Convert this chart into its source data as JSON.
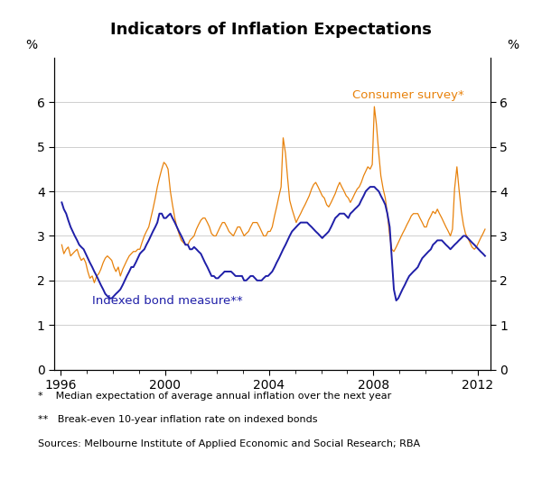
{
  "title": "Indicators of Inflation Expectations",
  "ylabel_left": "%",
  "ylabel_right": "%",
  "xlim": [
    1995.75,
    2012.5
  ],
  "ylim": [
    0,
    7
  ],
  "yticks": [
    0,
    1,
    2,
    3,
    4,
    5,
    6
  ],
  "xticks": [
    1996,
    2000,
    2004,
    2008,
    2012
  ],
  "xtick_labels": [
    "1996",
    "2000",
    "2004",
    "2008",
    "2012"
  ],
  "consumer_color": "#E8820C",
  "bond_color": "#1F1FA8",
  "consumer_label": "Consumer survey*",
  "bond_label": "Indexed bond measure**",
  "footnote1": "*    Median expectation of average annual inflation over the next year",
  "footnote2": "**   Break-even 10-year inflation rate on indexed bonds",
  "footnote3": "Sources: Melbourne Institute of Applied Economic and Social Research; RBA",
  "background_color": "#ffffff",
  "consumer_x": [
    1996.04,
    1996.12,
    1996.21,
    1996.29,
    1996.38,
    1996.46,
    1996.54,
    1996.63,
    1996.71,
    1996.79,
    1996.88,
    1996.96,
    1997.04,
    1997.12,
    1997.21,
    1997.29,
    1997.38,
    1997.46,
    1997.54,
    1997.63,
    1997.71,
    1997.79,
    1997.88,
    1997.96,
    1998.04,
    1998.12,
    1998.21,
    1998.29,
    1998.38,
    1998.46,
    1998.54,
    1998.63,
    1998.71,
    1998.79,
    1998.88,
    1998.96,
    1999.04,
    1999.12,
    1999.21,
    1999.29,
    1999.38,
    1999.46,
    1999.54,
    1999.63,
    1999.71,
    1999.79,
    1999.88,
    1999.96,
    2000.04,
    2000.12,
    2000.21,
    2000.29,
    2000.38,
    2000.46,
    2000.54,
    2000.63,
    2000.71,
    2000.79,
    2000.88,
    2000.96,
    2001.04,
    2001.12,
    2001.21,
    2001.29,
    2001.38,
    2001.46,
    2001.54,
    2001.63,
    2001.71,
    2001.79,
    2001.88,
    2001.96,
    2002.04,
    2002.12,
    2002.21,
    2002.29,
    2002.38,
    2002.46,
    2002.54,
    2002.63,
    2002.71,
    2002.79,
    2002.88,
    2002.96,
    2003.04,
    2003.12,
    2003.21,
    2003.29,
    2003.38,
    2003.46,
    2003.54,
    2003.63,
    2003.71,
    2003.79,
    2003.88,
    2003.96,
    2004.04,
    2004.12,
    2004.21,
    2004.29,
    2004.38,
    2004.46,
    2004.54,
    2004.63,
    2004.71,
    2004.79,
    2004.88,
    2004.96,
    2005.04,
    2005.12,
    2005.21,
    2005.29,
    2005.38,
    2005.46,
    2005.54,
    2005.63,
    2005.71,
    2005.79,
    2005.88,
    2005.96,
    2006.04,
    2006.12,
    2006.21,
    2006.29,
    2006.38,
    2006.46,
    2006.54,
    2006.63,
    2006.71,
    2006.79,
    2006.88,
    2006.96,
    2007.04,
    2007.12,
    2007.21,
    2007.29,
    2007.38,
    2007.46,
    2007.54,
    2007.63,
    2007.71,
    2007.79,
    2007.88,
    2007.96,
    2008.04,
    2008.12,
    2008.21,
    2008.29,
    2008.38,
    2008.46,
    2008.54,
    2008.63,
    2008.71,
    2008.79,
    2008.88,
    2008.96,
    2009.04,
    2009.12,
    2009.21,
    2009.29,
    2009.38,
    2009.46,
    2009.54,
    2009.63,
    2009.71,
    2009.79,
    2009.88,
    2009.96,
    2010.04,
    2010.12,
    2010.21,
    2010.29,
    2010.38,
    2010.46,
    2010.54,
    2010.63,
    2010.71,
    2010.79,
    2010.88,
    2010.96,
    2011.04,
    2011.12,
    2011.21,
    2011.29,
    2011.38,
    2011.46,
    2011.54,
    2011.63,
    2011.71,
    2011.79,
    2011.88,
    2011.96,
    2012.04,
    2012.12,
    2012.21,
    2012.29
  ],
  "consumer_y": [
    2.8,
    2.6,
    2.7,
    2.75,
    2.55,
    2.6,
    2.65,
    2.7,
    2.55,
    2.45,
    2.5,
    2.4,
    2.2,
    2.05,
    2.1,
    1.95,
    2.1,
    2.15,
    2.25,
    2.4,
    2.5,
    2.55,
    2.5,
    2.45,
    2.3,
    2.2,
    2.3,
    2.1,
    2.25,
    2.35,
    2.45,
    2.55,
    2.6,
    2.65,
    2.65,
    2.7,
    2.7,
    2.85,
    3.0,
    3.1,
    3.2,
    3.4,
    3.6,
    3.85,
    4.1,
    4.3,
    4.5,
    4.65,
    4.6,
    4.5,
    4.0,
    3.7,
    3.4,
    3.2,
    3.05,
    2.9,
    2.85,
    2.8,
    2.8,
    2.9,
    2.95,
    3.0,
    3.15,
    3.25,
    3.35,
    3.4,
    3.4,
    3.3,
    3.2,
    3.05,
    3.0,
    3.0,
    3.1,
    3.2,
    3.3,
    3.3,
    3.2,
    3.1,
    3.05,
    3.0,
    3.1,
    3.2,
    3.2,
    3.1,
    3.0,
    3.05,
    3.1,
    3.2,
    3.3,
    3.3,
    3.3,
    3.2,
    3.1,
    3.0,
    3.0,
    3.1,
    3.1,
    3.2,
    3.45,
    3.65,
    3.9,
    4.1,
    5.2,
    4.85,
    4.3,
    3.8,
    3.6,
    3.45,
    3.3,
    3.4,
    3.5,
    3.6,
    3.7,
    3.8,
    3.9,
    4.05,
    4.15,
    4.2,
    4.1,
    4.0,
    3.9,
    3.85,
    3.7,
    3.65,
    3.75,
    3.85,
    3.95,
    4.1,
    4.2,
    4.1,
    4.0,
    3.9,
    3.85,
    3.75,
    3.85,
    3.95,
    4.05,
    4.1,
    4.2,
    4.35,
    4.45,
    4.55,
    4.5,
    4.6,
    5.9,
    5.5,
    4.85,
    4.35,
    4.05,
    3.85,
    3.5,
    3.0,
    2.7,
    2.65,
    2.75,
    2.85,
    2.95,
    3.05,
    3.15,
    3.25,
    3.35,
    3.45,
    3.5,
    3.5,
    3.5,
    3.4,
    3.3,
    3.2,
    3.2,
    3.35,
    3.45,
    3.55,
    3.5,
    3.6,
    3.5,
    3.4,
    3.3,
    3.2,
    3.1,
    3.0,
    3.15,
    4.05,
    4.55,
    4.05,
    3.55,
    3.25,
    3.05,
    2.95,
    2.85,
    2.75,
    2.7,
    2.75,
    2.85,
    2.95,
    3.05,
    3.15
  ],
  "bond_x": [
    1996.04,
    1996.12,
    1996.21,
    1996.29,
    1996.38,
    1996.46,
    1996.54,
    1996.63,
    1996.71,
    1996.79,
    1996.88,
    1996.96,
    1997.04,
    1997.12,
    1997.21,
    1997.29,
    1997.38,
    1997.46,
    1997.54,
    1997.63,
    1997.71,
    1997.79,
    1997.88,
    1997.96,
    1998.04,
    1998.12,
    1998.21,
    1998.29,
    1998.38,
    1998.46,
    1998.54,
    1998.63,
    1998.71,
    1998.79,
    1998.88,
    1998.96,
    1999.04,
    1999.12,
    1999.21,
    1999.29,
    1999.38,
    1999.46,
    1999.54,
    1999.63,
    1999.71,
    1999.79,
    1999.88,
    1999.96,
    2000.04,
    2000.12,
    2000.21,
    2000.29,
    2000.38,
    2000.46,
    2000.54,
    2000.63,
    2000.71,
    2000.79,
    2000.88,
    2000.96,
    2001.04,
    2001.12,
    2001.21,
    2001.29,
    2001.38,
    2001.46,
    2001.54,
    2001.63,
    2001.71,
    2001.79,
    2001.88,
    2001.96,
    2002.04,
    2002.12,
    2002.21,
    2002.29,
    2002.38,
    2002.46,
    2002.54,
    2002.63,
    2002.71,
    2002.79,
    2002.88,
    2002.96,
    2003.04,
    2003.12,
    2003.21,
    2003.29,
    2003.38,
    2003.46,
    2003.54,
    2003.63,
    2003.71,
    2003.79,
    2003.88,
    2003.96,
    2004.04,
    2004.12,
    2004.21,
    2004.29,
    2004.38,
    2004.46,
    2004.54,
    2004.63,
    2004.71,
    2004.79,
    2004.88,
    2004.96,
    2005.04,
    2005.12,
    2005.21,
    2005.29,
    2005.38,
    2005.46,
    2005.54,
    2005.63,
    2005.71,
    2005.79,
    2005.88,
    2005.96,
    2006.04,
    2006.12,
    2006.21,
    2006.29,
    2006.38,
    2006.46,
    2006.54,
    2006.63,
    2006.71,
    2006.79,
    2006.88,
    2006.96,
    2007.04,
    2007.12,
    2007.21,
    2007.29,
    2007.38,
    2007.46,
    2007.54,
    2007.63,
    2007.71,
    2007.79,
    2007.88,
    2007.96,
    2008.04,
    2008.12,
    2008.21,
    2008.29,
    2008.38,
    2008.46,
    2008.54,
    2008.63,
    2008.71,
    2008.79,
    2008.88,
    2008.96,
    2009.04,
    2009.12,
    2009.21,
    2009.29,
    2009.38,
    2009.46,
    2009.54,
    2009.63,
    2009.71,
    2009.79,
    2009.88,
    2009.96,
    2010.04,
    2010.12,
    2010.21,
    2010.29,
    2010.38,
    2010.46,
    2010.54,
    2010.63,
    2010.71,
    2010.79,
    2010.88,
    2010.96,
    2011.04,
    2011.12,
    2011.21,
    2011.29,
    2011.38,
    2011.46,
    2011.54,
    2011.63,
    2011.71,
    2011.79,
    2011.88,
    2011.96,
    2012.04,
    2012.12,
    2012.21,
    2012.29
  ],
  "bond_y": [
    3.75,
    3.6,
    3.5,
    3.35,
    3.2,
    3.1,
    3.0,
    2.9,
    2.8,
    2.75,
    2.7,
    2.6,
    2.5,
    2.4,
    2.3,
    2.2,
    2.1,
    2.0,
    1.9,
    1.8,
    1.7,
    1.65,
    1.6,
    1.6,
    1.65,
    1.7,
    1.75,
    1.8,
    1.9,
    2.0,
    2.1,
    2.2,
    2.3,
    2.3,
    2.4,
    2.5,
    2.6,
    2.65,
    2.7,
    2.8,
    2.9,
    3.0,
    3.1,
    3.2,
    3.3,
    3.5,
    3.5,
    3.4,
    3.4,
    3.45,
    3.5,
    3.4,
    3.3,
    3.2,
    3.1,
    3.0,
    2.9,
    2.8,
    2.8,
    2.7,
    2.7,
    2.75,
    2.7,
    2.65,
    2.6,
    2.5,
    2.4,
    2.3,
    2.2,
    2.1,
    2.1,
    2.05,
    2.05,
    2.1,
    2.15,
    2.2,
    2.2,
    2.2,
    2.2,
    2.15,
    2.1,
    2.1,
    2.1,
    2.1,
    2.0,
    2.0,
    2.05,
    2.1,
    2.1,
    2.05,
    2.0,
    2.0,
    2.0,
    2.05,
    2.1,
    2.1,
    2.15,
    2.2,
    2.3,
    2.4,
    2.5,
    2.6,
    2.7,
    2.8,
    2.9,
    3.0,
    3.1,
    3.15,
    3.2,
    3.25,
    3.3,
    3.3,
    3.3,
    3.3,
    3.25,
    3.2,
    3.15,
    3.1,
    3.05,
    3.0,
    2.95,
    3.0,
    3.05,
    3.1,
    3.2,
    3.3,
    3.4,
    3.45,
    3.5,
    3.5,
    3.5,
    3.45,
    3.4,
    3.5,
    3.55,
    3.6,
    3.65,
    3.7,
    3.8,
    3.9,
    4.0,
    4.05,
    4.1,
    4.1,
    4.1,
    4.05,
    4.0,
    3.9,
    3.8,
    3.7,
    3.5,
    3.2,
    2.5,
    1.8,
    1.55,
    1.6,
    1.7,
    1.8,
    1.9,
    2.0,
    2.1,
    2.15,
    2.2,
    2.25,
    2.3,
    2.4,
    2.5,
    2.55,
    2.6,
    2.65,
    2.7,
    2.8,
    2.85,
    2.9,
    2.9,
    2.9,
    2.85,
    2.8,
    2.75,
    2.7,
    2.75,
    2.8,
    2.85,
    2.9,
    2.95,
    3.0,
    3.0,
    2.95,
    2.9,
    2.85,
    2.8,
    2.75,
    2.7,
    2.65,
    2.6,
    2.55
  ]
}
